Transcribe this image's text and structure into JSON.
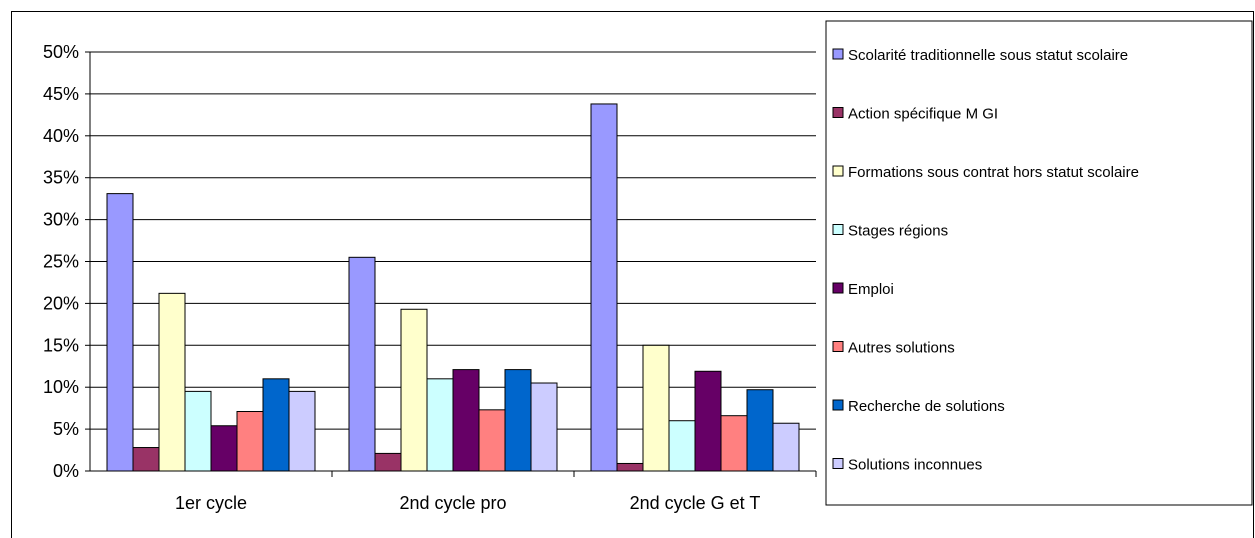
{
  "chart_data": {
    "type": "bar",
    "categories": [
      "1er cycle",
      "2nd cycle pro",
      "2nd cycle G et T"
    ],
    "series": [
      {
        "name": "Scolarité traditionnelle sous statut scolaire",
        "color": "#9999FF",
        "values": [
          33.1,
          25.5,
          43.8
        ]
      },
      {
        "name": "Action spécifique M GI",
        "color": "#993366",
        "values": [
          2.8,
          2.1,
          0.9
        ]
      },
      {
        "name": "Formations sous contrat hors statut scolaire",
        "color": "#FFFFCC",
        "values": [
          21.2,
          19.3,
          15.0
        ]
      },
      {
        "name": "Stages régions",
        "color": "#CCFFFF",
        "values": [
          9.5,
          11.0,
          6.0
        ]
      },
      {
        "name": "Emploi",
        "color": "#660066",
        "values": [
          5.4,
          12.1,
          11.9
        ]
      },
      {
        "name": "Autres solutions",
        "color": "#FF8080",
        "values": [
          7.1,
          7.3,
          6.6
        ]
      },
      {
        "name": "Recherche de solutions",
        "color": "#0066CC",
        "values": [
          11.0,
          12.1,
          9.7
        ]
      },
      {
        "name": "Solutions inconnues",
        "color": "#CCCCFF",
        "values": [
          9.5,
          10.5,
          5.7
        ]
      }
    ],
    "ylim": [
      0,
      50
    ],
    "yticks": [
      "0%",
      "5%",
      "10%",
      "15%",
      "20%",
      "25%",
      "30%",
      "35%",
      "40%",
      "45%",
      "50%"
    ],
    "grid": true,
    "legend_position": "right",
    "title": "",
    "xlabel": "",
    "ylabel": ""
  }
}
